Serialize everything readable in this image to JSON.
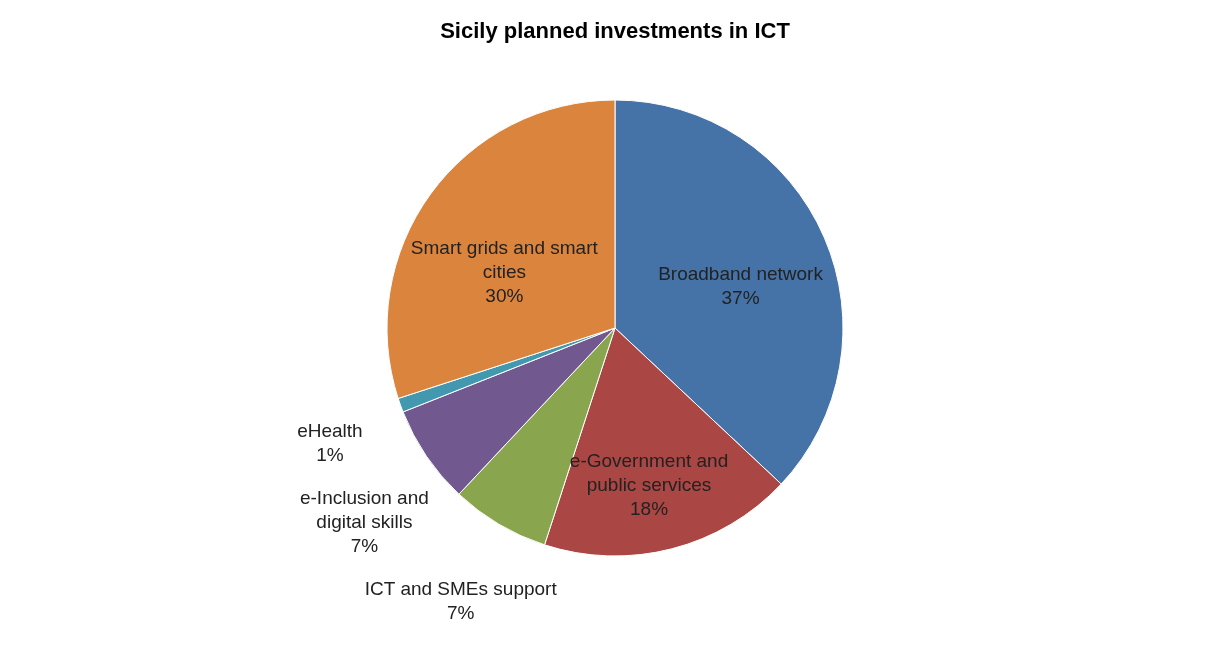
{
  "chart_data": {
    "type": "pie",
    "title": "Sicily planned investments in ICT",
    "categories": [
      "Broadband network",
      "e-Government and public services",
      "ICT and SMEs support",
      "e-Inclusion and digital skills",
      "eHealth",
      "Smart grids and smart cities"
    ],
    "values": [
      37,
      18,
      7,
      7,
      1,
      30
    ],
    "colors": [
      "#4572a7",
      "#aa4643",
      "#89a54e",
      "#71588f",
      "#4198af",
      "#db843d"
    ],
    "data_labels": true,
    "value_labels": [
      "37%",
      "18%",
      "7%",
      "7%",
      "1%",
      "30%"
    ],
    "legend": false
  }
}
